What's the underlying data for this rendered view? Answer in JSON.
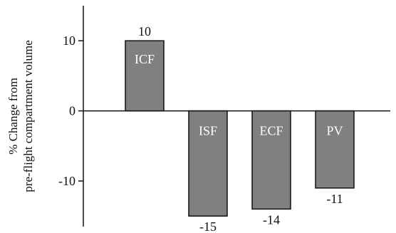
{
  "chart_data": {
    "type": "bar",
    "ylabel_lines": [
      "% Change from",
      "pre-flight compartment volume"
    ],
    "categories": [
      "ICF",
      "ISF",
      "ECF",
      "PV"
    ],
    "values": [
      10,
      -15,
      -14,
      -11
    ],
    "value_labels": [
      "10",
      "-15",
      "-14",
      "-11"
    ],
    "yticks": [
      10,
      0,
      -10
    ],
    "ytick_labels": [
      "10",
      "0",
      "-10"
    ],
    "ylim": [
      -16.5,
      15
    ],
    "grid": false,
    "bar_color": "#808080"
  }
}
